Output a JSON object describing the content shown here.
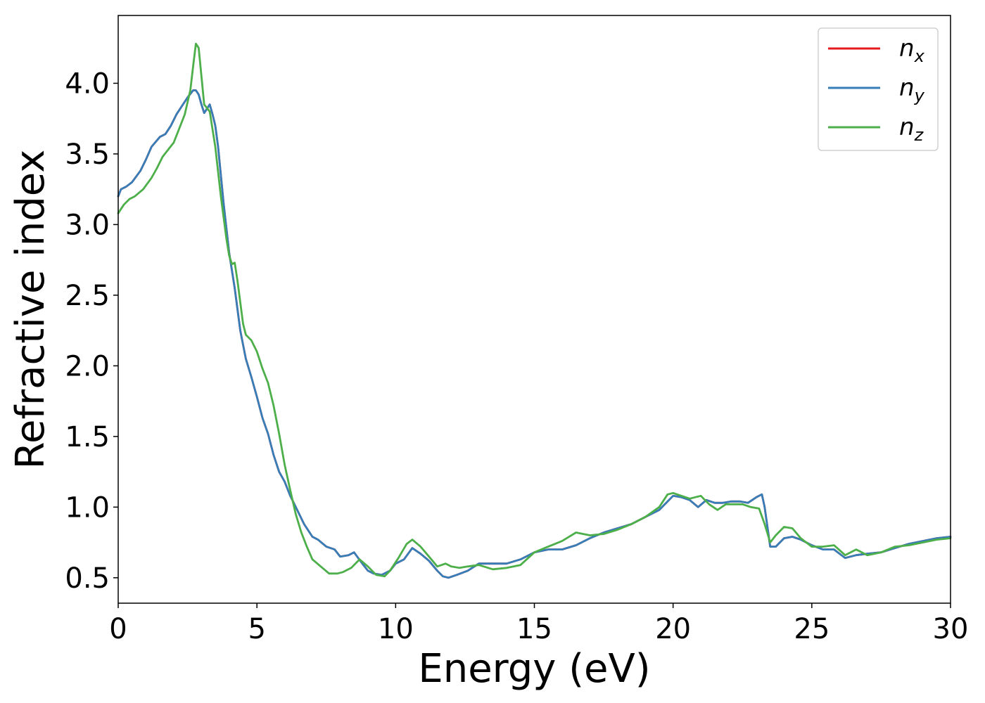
{
  "chart_data": {
    "type": "line",
    "title": "",
    "xlabel": "Energy (eV)",
    "ylabel": "Refractive index",
    "xlim": [
      0,
      30
    ],
    "ylim": [
      0.32,
      4.48
    ],
    "xticks": [
      0,
      5,
      10,
      15,
      20,
      25,
      30
    ],
    "xtick_labels": [
      "0",
      "5",
      "10",
      "15",
      "20",
      "25",
      "30"
    ],
    "yticks": [
      0.5,
      1.0,
      1.5,
      2.0,
      2.5,
      3.0,
      3.5,
      4.0
    ],
    "ytick_labels": [
      "0.5",
      "1.0",
      "1.5",
      "2.0",
      "2.5",
      "3.0",
      "3.5",
      "4.0"
    ],
    "grid": false,
    "legend_position": "top-right",
    "series": [
      {
        "name": "n_x",
        "base": "n",
        "sub": "x",
        "color": "#e41a1c",
        "x": [
          0,
          0.1,
          0.3,
          0.5,
          0.8,
          1.0,
          1.2,
          1.5,
          1.7,
          1.9,
          2.1,
          2.3,
          2.5,
          2.7,
          2.8,
          2.9,
          3.0,
          3.1,
          3.2,
          3.3,
          3.4,
          3.5,
          3.6,
          3.8,
          4.0,
          4.2,
          4.4,
          4.6,
          4.8,
          5.0,
          5.2,
          5.4,
          5.6,
          5.8,
          6.0,
          6.2,
          6.4,
          6.7,
          7.0,
          7.2,
          7.5,
          7.8,
          8.0,
          8.3,
          8.5,
          8.8,
          9.0,
          9.2,
          9.5,
          9.8,
          10.0,
          10.3,
          10.6,
          10.9,
          11.2,
          11.5,
          11.7,
          11.9,
          12.2,
          12.6,
          13.0,
          13.5,
          14.0,
          14.5,
          15.0,
          15.5,
          16.0,
          16.5,
          17.0,
          17.5,
          18.0,
          18.5,
          19.0,
          19.5,
          19.8,
          20.0,
          20.3,
          20.6,
          20.9,
          21.2,
          21.5,
          21.8,
          22.1,
          22.4,
          22.7,
          23.0,
          23.2,
          23.3,
          23.5,
          23.7,
          24.0,
          24.3,
          24.6,
          25.0,
          25.4,
          25.8,
          26.2,
          26.6,
          27.0,
          27.5,
          28.0,
          28.5,
          29.0,
          29.5,
          30.0
        ],
        "y": [
          3.2,
          3.25,
          3.27,
          3.3,
          3.38,
          3.46,
          3.55,
          3.62,
          3.64,
          3.7,
          3.78,
          3.84,
          3.9,
          3.95,
          3.95,
          3.92,
          3.85,
          3.79,
          3.82,
          3.85,
          3.78,
          3.7,
          3.55,
          3.15,
          2.8,
          2.55,
          2.25,
          2.05,
          1.92,
          1.78,
          1.63,
          1.52,
          1.37,
          1.25,
          1.18,
          1.08,
          1.0,
          0.88,
          0.79,
          0.77,
          0.72,
          0.7,
          0.65,
          0.66,
          0.68,
          0.6,
          0.55,
          0.53,
          0.52,
          0.55,
          0.6,
          0.63,
          0.71,
          0.67,
          0.62,
          0.55,
          0.51,
          0.5,
          0.52,
          0.55,
          0.6,
          0.6,
          0.6,
          0.63,
          0.68,
          0.7,
          0.7,
          0.73,
          0.78,
          0.82,
          0.85,
          0.88,
          0.93,
          0.98,
          1.04,
          1.08,
          1.07,
          1.05,
          1.0,
          1.05,
          1.03,
          1.03,
          1.04,
          1.04,
          1.03,
          1.07,
          1.09,
          1.0,
          0.72,
          0.72,
          0.78,
          0.79,
          0.77,
          0.73,
          0.7,
          0.7,
          0.64,
          0.66,
          0.67,
          0.68,
          0.71,
          0.74,
          0.76,
          0.78,
          0.79
        ]
      },
      {
        "name": "n_y",
        "base": "n",
        "sub": "y",
        "color": "#377eb8",
        "x": [
          0,
          0.1,
          0.3,
          0.5,
          0.8,
          1.0,
          1.2,
          1.5,
          1.7,
          1.9,
          2.1,
          2.3,
          2.5,
          2.7,
          2.8,
          2.9,
          3.0,
          3.1,
          3.2,
          3.3,
          3.4,
          3.5,
          3.6,
          3.8,
          4.0,
          4.2,
          4.4,
          4.6,
          4.8,
          5.0,
          5.2,
          5.4,
          5.6,
          5.8,
          6.0,
          6.2,
          6.4,
          6.7,
          7.0,
          7.2,
          7.5,
          7.8,
          8.0,
          8.3,
          8.5,
          8.8,
          9.0,
          9.2,
          9.5,
          9.8,
          10.0,
          10.3,
          10.6,
          10.9,
          11.2,
          11.5,
          11.7,
          11.9,
          12.2,
          12.6,
          13.0,
          13.5,
          14.0,
          14.5,
          15.0,
          15.5,
          16.0,
          16.5,
          17.0,
          17.5,
          18.0,
          18.5,
          19.0,
          19.5,
          19.8,
          20.0,
          20.3,
          20.6,
          20.9,
          21.2,
          21.5,
          21.8,
          22.1,
          22.4,
          22.7,
          23.0,
          23.2,
          23.3,
          23.5,
          23.7,
          24.0,
          24.3,
          24.6,
          25.0,
          25.4,
          25.8,
          26.2,
          26.6,
          27.0,
          27.5,
          28.0,
          28.5,
          29.0,
          29.5,
          30.0
        ],
        "y": [
          3.2,
          3.25,
          3.27,
          3.3,
          3.38,
          3.46,
          3.55,
          3.62,
          3.64,
          3.7,
          3.78,
          3.84,
          3.9,
          3.95,
          3.95,
          3.92,
          3.85,
          3.79,
          3.82,
          3.85,
          3.78,
          3.7,
          3.55,
          3.15,
          2.8,
          2.55,
          2.25,
          2.05,
          1.92,
          1.78,
          1.63,
          1.52,
          1.37,
          1.25,
          1.18,
          1.08,
          1.0,
          0.88,
          0.79,
          0.77,
          0.72,
          0.7,
          0.65,
          0.66,
          0.68,
          0.6,
          0.55,
          0.53,
          0.52,
          0.55,
          0.6,
          0.63,
          0.71,
          0.67,
          0.62,
          0.55,
          0.51,
          0.5,
          0.52,
          0.55,
          0.6,
          0.6,
          0.6,
          0.63,
          0.68,
          0.7,
          0.7,
          0.73,
          0.78,
          0.82,
          0.85,
          0.88,
          0.93,
          0.98,
          1.04,
          1.08,
          1.07,
          1.05,
          1.0,
          1.05,
          1.03,
          1.03,
          1.04,
          1.04,
          1.03,
          1.07,
          1.09,
          1.0,
          0.72,
          0.72,
          0.78,
          0.79,
          0.77,
          0.73,
          0.7,
          0.7,
          0.64,
          0.66,
          0.67,
          0.68,
          0.71,
          0.74,
          0.76,
          0.78,
          0.79
        ]
      },
      {
        "name": "n_z",
        "base": "n",
        "sub": "z",
        "color": "#4daf4a",
        "x": [
          0,
          0.2,
          0.4,
          0.6,
          0.9,
          1.2,
          1.4,
          1.6,
          1.8,
          2.0,
          2.2,
          2.4,
          2.6,
          2.7,
          2.8,
          2.9,
          3.0,
          3.1,
          3.3,
          3.5,
          3.7,
          3.9,
          4.0,
          4.1,
          4.2,
          4.3,
          4.4,
          4.5,
          4.6,
          4.8,
          5.0,
          5.2,
          5.4,
          5.6,
          5.8,
          6.0,
          6.2,
          6.4,
          6.6,
          6.8,
          7.0,
          7.3,
          7.6,
          7.9,
          8.1,
          8.4,
          8.7,
          9.0,
          9.3,
          9.6,
          9.8,
          10.1,
          10.4,
          10.6,
          10.9,
          11.2,
          11.5,
          11.8,
          12.0,
          12.3,
          12.6,
          13.0,
          13.5,
          14.0,
          14.5,
          15.0,
          15.5,
          16.0,
          16.5,
          17.0,
          17.5,
          18.0,
          18.5,
          19.0,
          19.5,
          19.8,
          20.0,
          20.3,
          20.6,
          21.0,
          21.3,
          21.6,
          21.9,
          22.2,
          22.5,
          22.8,
          23.1,
          23.3,
          23.5,
          23.7,
          24.0,
          24.3,
          24.6,
          25.0,
          25.4,
          25.8,
          26.2,
          26.6,
          27.0,
          27.5,
          28.0,
          28.5,
          29.0,
          29.5,
          30.0
        ],
        "y": [
          3.08,
          3.14,
          3.18,
          3.2,
          3.25,
          3.33,
          3.4,
          3.48,
          3.53,
          3.58,
          3.68,
          3.78,
          3.95,
          4.12,
          4.28,
          4.25,
          4.05,
          3.85,
          3.8,
          3.55,
          3.2,
          2.9,
          2.78,
          2.72,
          2.73,
          2.6,
          2.45,
          2.3,
          2.22,
          2.18,
          2.1,
          1.98,
          1.88,
          1.72,
          1.52,
          1.3,
          1.12,
          0.95,
          0.82,
          0.72,
          0.63,
          0.58,
          0.53,
          0.53,
          0.54,
          0.57,
          0.63,
          0.58,
          0.52,
          0.51,
          0.55,
          0.64,
          0.74,
          0.77,
          0.72,
          0.65,
          0.58,
          0.6,
          0.58,
          0.57,
          0.58,
          0.59,
          0.56,
          0.57,
          0.59,
          0.68,
          0.72,
          0.76,
          0.82,
          0.8,
          0.81,
          0.84,
          0.88,
          0.93,
          1.0,
          1.09,
          1.1,
          1.08,
          1.06,
          1.08,
          1.02,
          0.98,
          1.02,
          1.02,
          1.02,
          1.0,
          0.99,
          0.88,
          0.75,
          0.8,
          0.86,
          0.85,
          0.78,
          0.72,
          0.72,
          0.73,
          0.66,
          0.7,
          0.66,
          0.68,
          0.72,
          0.73,
          0.75,
          0.77,
          0.78
        ]
      }
    ]
  }
}
